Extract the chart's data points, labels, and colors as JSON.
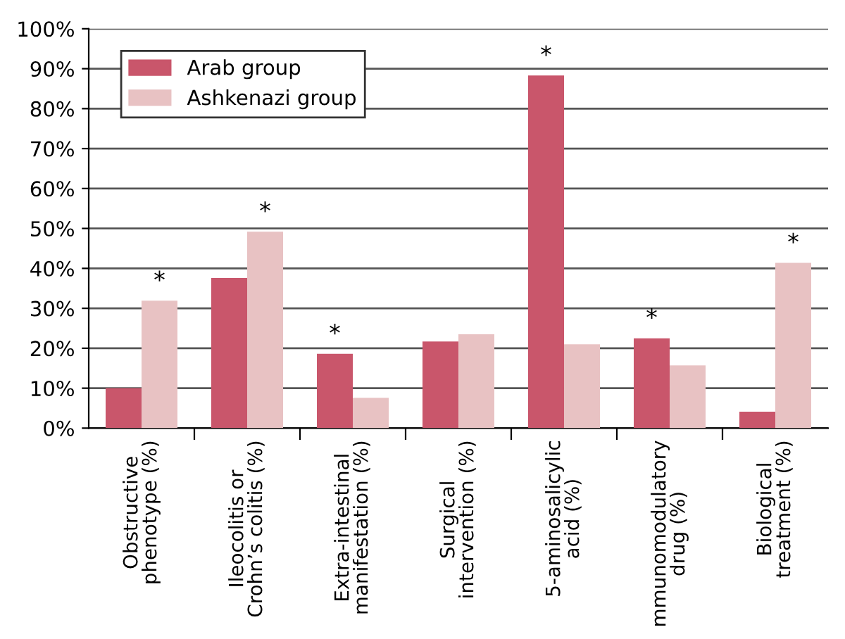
{
  "chart_data": {
    "type": "bar",
    "categories": [
      "Obstructive\nphenotype (%)",
      "Ileocolitis or\nCrohn’s colitis (%)",
      "Extra-intestinal\nmanifestation (%)",
      "Surgical\nintervention (%)",
      "5-aminosalicylic\nacid (%)",
      "mmunomodulatory\ndrug (%)",
      "Biological\ntreatment (%)"
    ],
    "series": [
      {
        "name": "Arab group",
        "color": "#c9566b",
        "values": [
          10,
          37.6,
          18.6,
          21.7,
          88.3,
          22.5,
          4.1
        ],
        "value_labels": [
          null,
          null,
          "*",
          null,
          "*",
          "*",
          null
        ]
      },
      {
        "name": "Ashkenazi group",
        "color": "#e8c2c3",
        "values": [
          31.9,
          49.2,
          7.6,
          23.5,
          21.0,
          15.7,
          41.4
        ],
        "value_labels": [
          "*",
          "*",
          null,
          null,
          null,
          null,
          "*"
        ]
      }
    ],
    "ylim": [
      0,
      100
    ],
    "yticks": [
      {
        "value": 0,
        "label": "0%"
      },
      {
        "value": 10,
        "label": "10%"
      },
      {
        "value": 20,
        "label": "20%"
      },
      {
        "value": 30,
        "label": "30%"
      },
      {
        "value": 40,
        "label": "40%"
      },
      {
        "value": 50,
        "label": "50%"
      },
      {
        "value": 60,
        "label": "60%"
      },
      {
        "value": 70,
        "label": "70%"
      },
      {
        "value": 80,
        "label": "80%"
      },
      {
        "value": 90,
        "label": "90%"
      },
      {
        "value": 100,
        "label": "100%"
      }
    ],
    "grid": "y",
    "legend": "top left"
  }
}
